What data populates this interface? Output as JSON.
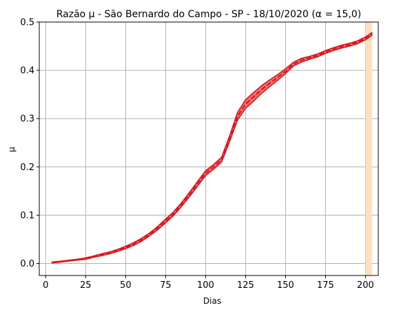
{
  "chart_data": {
    "type": "line",
    "title": "Razão μ - São Bernardo do Campo - SP - 18/10/2020 (α = 15,0)",
    "xlabel": "Dias",
    "ylabel": "μ",
    "xlim": [
      -4,
      208
    ],
    "ylim": [
      -0.025,
      0.5
    ],
    "grid": true,
    "xticks": [
      0,
      25,
      50,
      75,
      100,
      125,
      150,
      175,
      200
    ],
    "yticks": [
      0.0,
      0.1,
      0.2,
      0.3,
      0.4,
      0.5
    ],
    "x_tick_labels": [
      "0",
      "25",
      "50",
      "75",
      "100",
      "125",
      "150",
      "175",
      "200"
    ],
    "y_tick_labels": [
      "0.0",
      "0.1",
      "0.2",
      "0.3",
      "0.4",
      "0.5"
    ],
    "highlight_band": {
      "x_range": [
        200,
        204
      ],
      "color": "#ffe0bd"
    },
    "series": [
      {
        "style": "dashed",
        "color": "#e8141c",
        "band_color": "#f07075",
        "x": [
          4,
          10,
          15,
          20,
          25,
          30,
          35,
          40,
          45,
          50,
          55,
          60,
          65,
          70,
          75,
          80,
          85,
          90,
          95,
          100,
          105,
          110,
          115,
          120,
          125,
          130,
          135,
          140,
          145,
          150,
          155,
          160,
          165,
          170,
          175,
          180,
          185,
          190,
          195,
          200,
          204
        ],
        "y": [
          0.002,
          0.004,
          0.006,
          0.008,
          0.01,
          0.014,
          0.018,
          0.022,
          0.027,
          0.033,
          0.04,
          0.049,
          0.06,
          0.073,
          0.088,
          0.103,
          0.122,
          0.143,
          0.165,
          0.187,
          0.2,
          0.215,
          0.258,
          0.305,
          0.33,
          0.345,
          0.36,
          0.373,
          0.385,
          0.398,
          0.413,
          0.421,
          0.426,
          0.431,
          0.438,
          0.444,
          0.449,
          0.453,
          0.458,
          0.466,
          0.475
        ],
        "band_halfwidth": [
          0.001,
          0.001,
          0.001,
          0.001,
          0.0015,
          0.0015,
          0.002,
          0.002,
          0.002,
          0.0025,
          0.003,
          0.003,
          0.003,
          0.0035,
          0.004,
          0.004,
          0.004,
          0.0045,
          0.005,
          0.005,
          0.005,
          0.005,
          0.006,
          0.008,
          0.009,
          0.009,
          0.008,
          0.007,
          0.006,
          0.005,
          0.004,
          0.004,
          0.003,
          0.003,
          0.003,
          0.003,
          0.003,
          0.003,
          0.003,
          0.003,
          0.003
        ]
      }
    ]
  }
}
